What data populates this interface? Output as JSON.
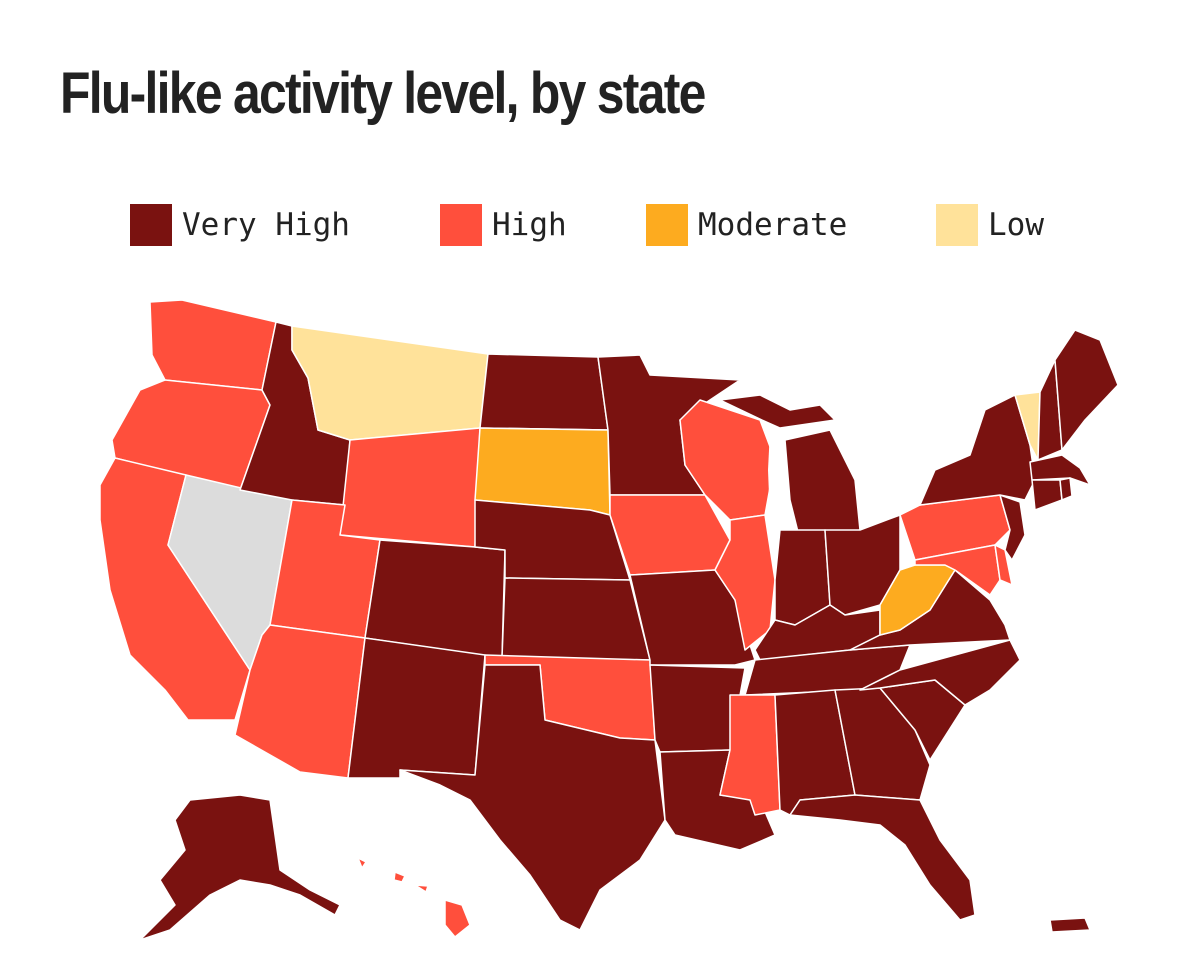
{
  "title": "Flu-like activity level, by state",
  "legend": [
    {
      "label": "Very High",
      "color": "#7a1210"
    },
    {
      "label": "High",
      "color": "#ff4f3c"
    },
    {
      "label": "Moderate",
      "color": "#fdab1f"
    },
    {
      "label": "Low",
      "color": "#ffe29a"
    }
  ],
  "no_data_color": "#dcdcdc",
  "states": {
    "WA": "High",
    "OR": "High",
    "CA": "High",
    "NV": "No data",
    "ID": "Very High",
    "MT": "Low",
    "WY": "High",
    "UT": "High",
    "AZ": "High",
    "CO": "Very High",
    "NM": "Very High",
    "ND": "Very High",
    "SD": "Moderate",
    "NE": "Very High",
    "KS": "Very High",
    "OK": "High",
    "TX": "Very High",
    "MN": "Very High",
    "IA": "High",
    "MO": "Very High",
    "AR": "Very High",
    "LA": "Very High",
    "WI": "High",
    "IL": "High",
    "MI": "Very High",
    "IN": "Very High",
    "OH": "Very High",
    "KY": "Very High",
    "TN": "Very High",
    "MS": "High",
    "AL": "Very High",
    "GA": "Very High",
    "FL": "Very High",
    "SC": "Very High",
    "NC": "Very High",
    "VA": "Very High",
    "WV": "Moderate",
    "PA": "High",
    "NY": "Very High",
    "VT": "Low",
    "NH": "Very High",
    "ME": "Very High",
    "MA": "Very High",
    "RI": "Very High",
    "CT": "Very High",
    "NJ": "Very High",
    "DE": "High",
    "MD": "High",
    "AK": "Very High",
    "HI": "High",
    "PR": "Very High"
  }
}
